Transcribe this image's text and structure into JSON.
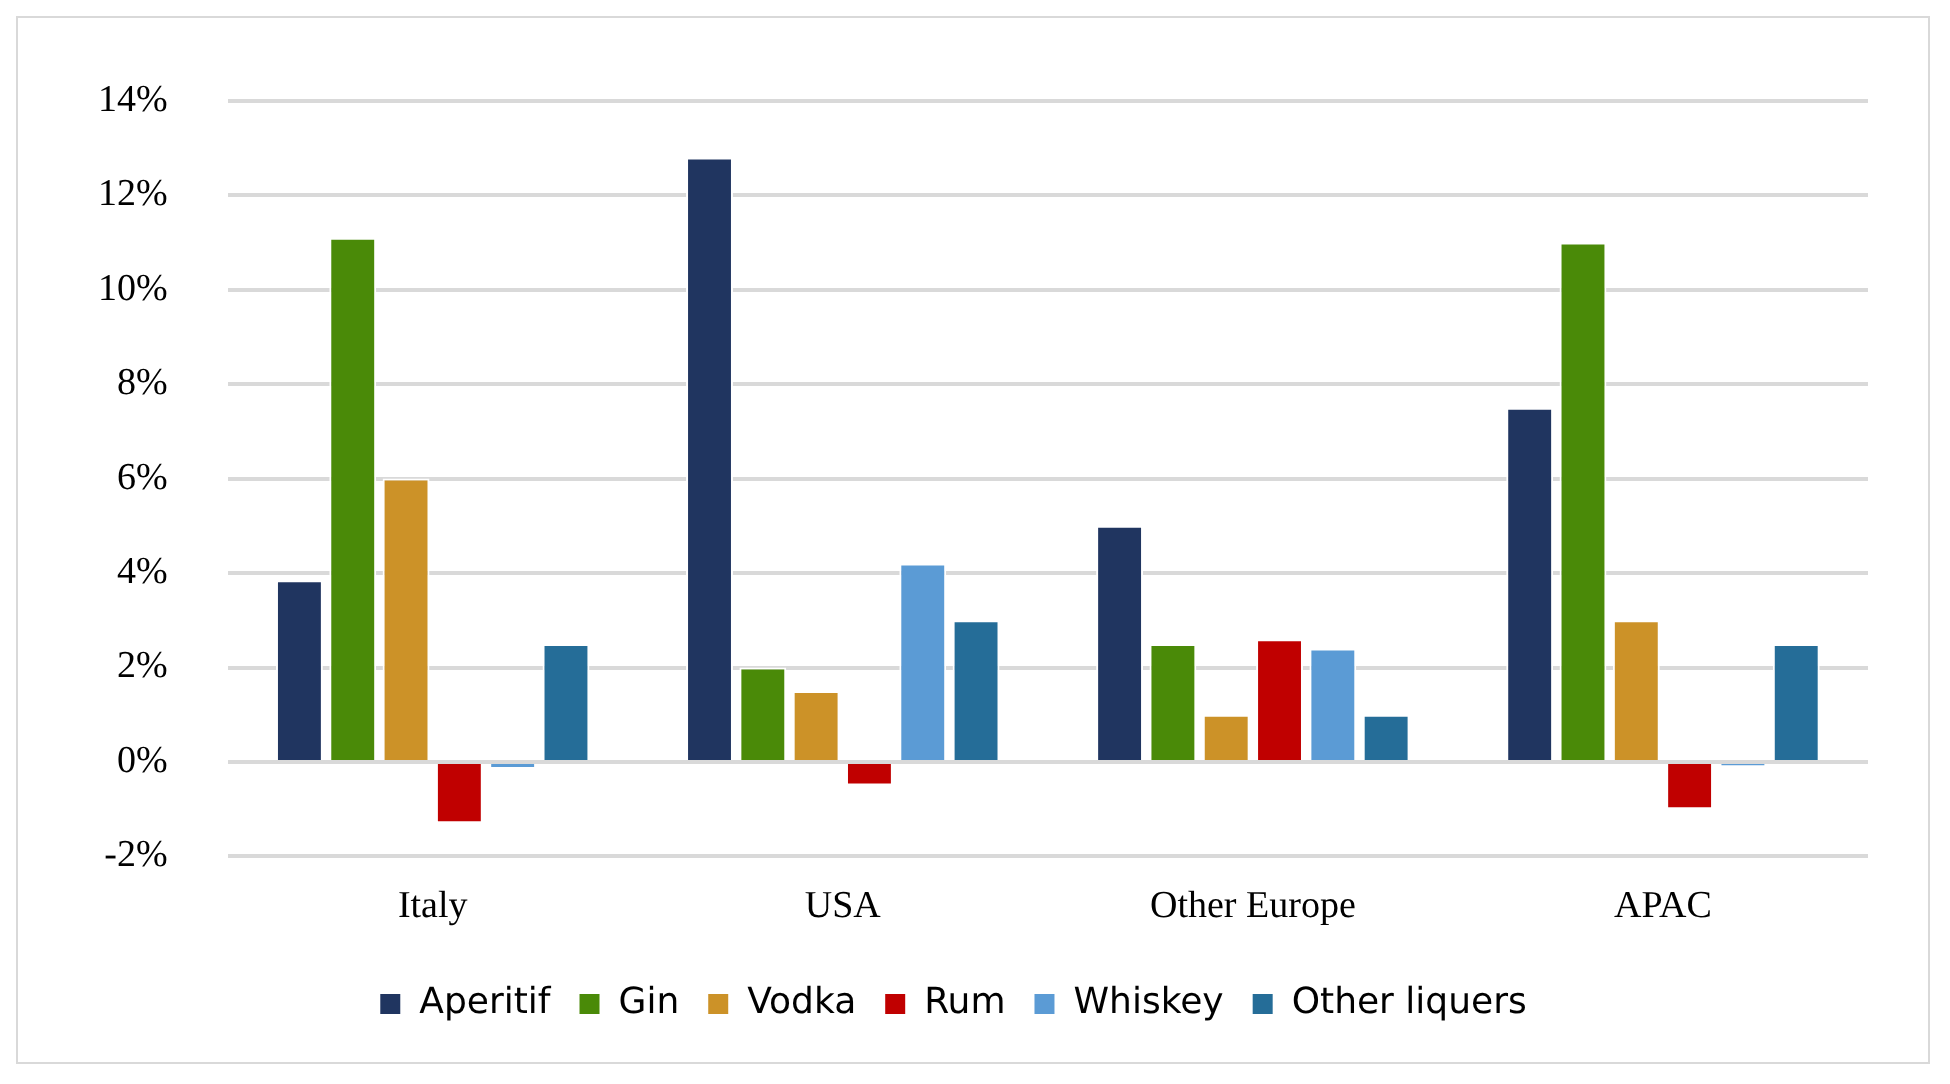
{
  "chart_data": {
    "type": "bar",
    "categories": [
      "Italy",
      "USA",
      "Other Europe",
      "APAC"
    ],
    "series": [
      {
        "name": "Aperitif",
        "color": "#203560",
        "values": [
          3.85,
          12.8,
          5.0,
          7.5
        ]
      },
      {
        "name": "Gin",
        "color": "#4a8a08",
        "values": [
          11.1,
          2.0,
          2.5,
          11.0
        ]
      },
      {
        "name": "Vodka",
        "color": "#cc9228",
        "values": [
          6.0,
          1.5,
          1.0,
          3.0
        ]
      },
      {
        "name": "Rum",
        "color": "#c00000",
        "values": [
          -1.3,
          -0.5,
          2.6,
          -1.0
        ]
      },
      {
        "name": "Whiskey",
        "color": "#5b9bd5",
        "values": [
          -0.15,
          4.2,
          2.4,
          -0.1
        ]
      },
      {
        "name": "Other liquers",
        "color": "#256d98",
        "values": [
          2.5,
          3.0,
          1.0,
          2.5
        ]
      }
    ],
    "ylim": [
      -2,
      14
    ],
    "yticks": [
      {
        "value": -2,
        "label": "-2%"
      },
      {
        "value": 0,
        "label": "0%"
      },
      {
        "value": 2,
        "label": "2%"
      },
      {
        "value": 4,
        "label": "4%"
      },
      {
        "value": 6,
        "label": "6%"
      },
      {
        "value": 8,
        "label": "8%"
      },
      {
        "value": 10,
        "label": "10%"
      },
      {
        "value": 12,
        "label": "12%"
      },
      {
        "value": 14,
        "label": "14%"
      }
    ],
    "grid": "y",
    "legend": "bottom"
  }
}
